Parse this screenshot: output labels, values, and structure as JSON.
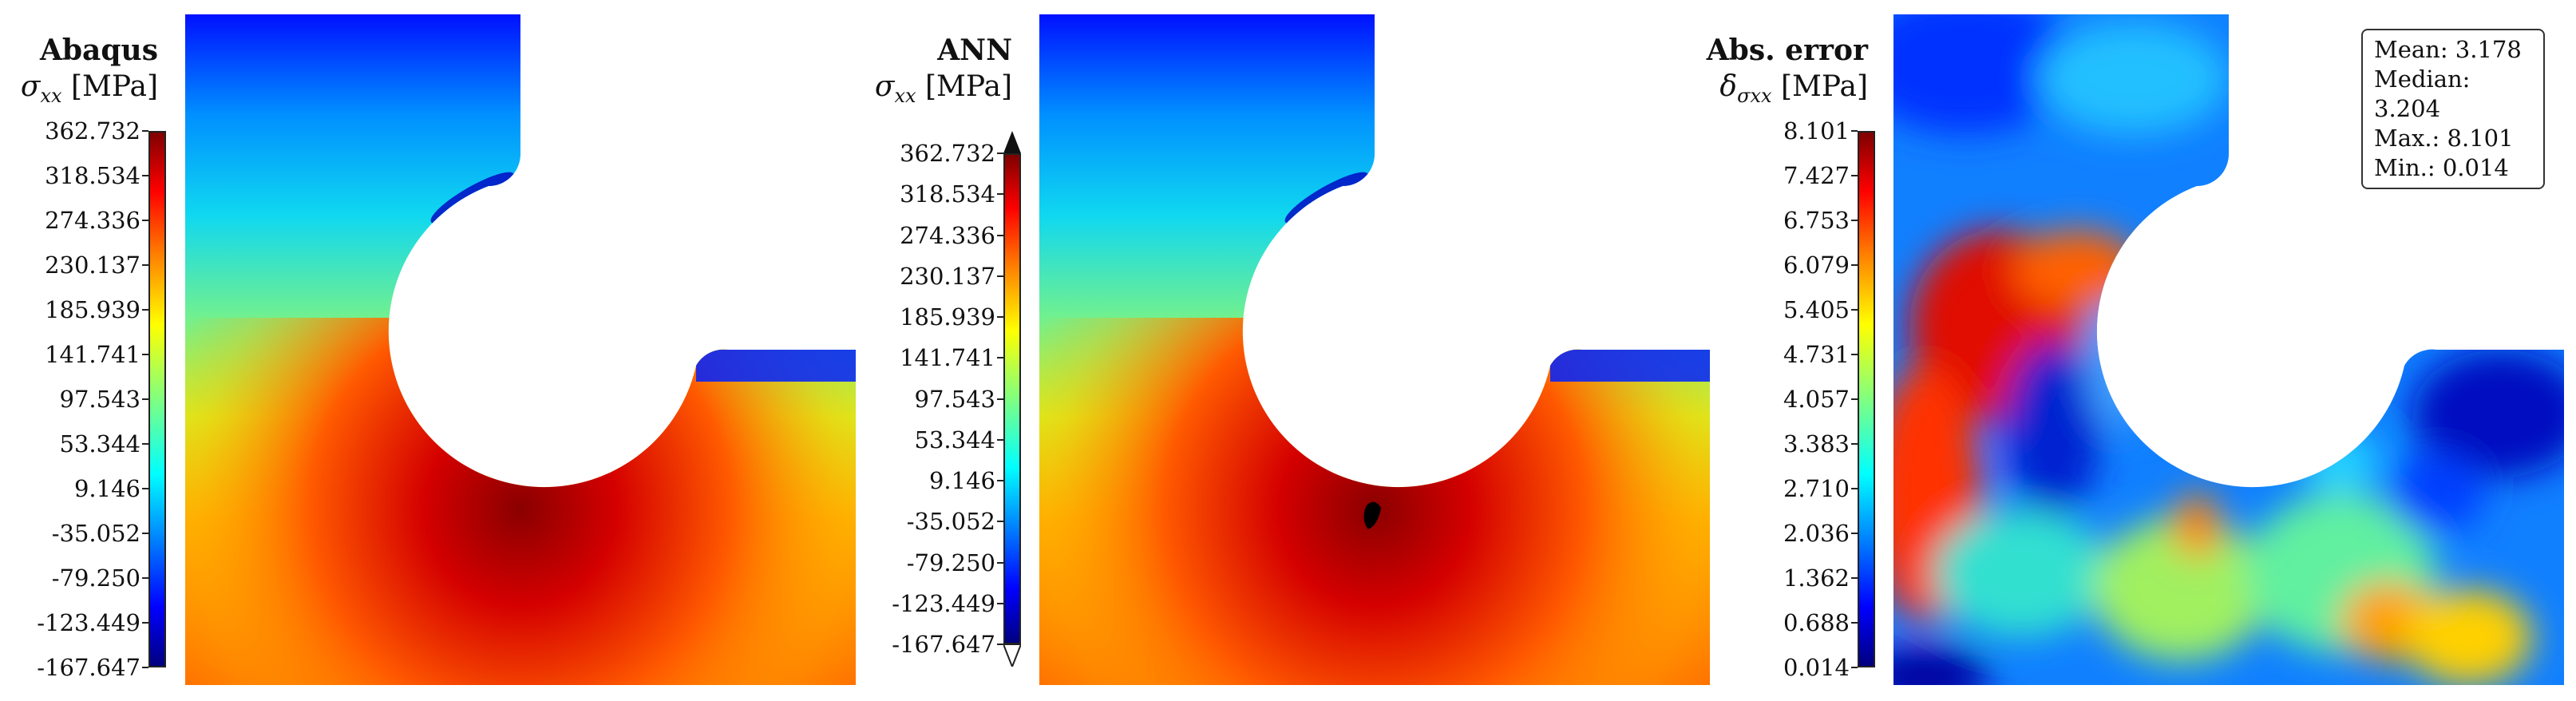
{
  "panels": [
    {
      "title": "Abaqus",
      "symbol": "σ",
      "subscript": "xx",
      "unit": "[MPa]",
      "colorbar_ticks": [
        "362.732",
        "318.534",
        "274.336",
        "230.137",
        "185.939",
        "141.741",
        "97.543",
        "53.344",
        "9.146",
        "-35.052",
        "-79.250",
        "-123.449",
        "-167.647"
      ]
    },
    {
      "title": "ANN",
      "symbol": "σ",
      "subscript": "xx",
      "unit": "[MPa]",
      "colorbar_ticks": [
        "362.732",
        "318.534",
        "274.336",
        "230.137",
        "185.939",
        "141.741",
        "97.543",
        "53.344",
        "9.146",
        "-35.052",
        "-79.250",
        "-123.449",
        "-167.647"
      ]
    },
    {
      "title": "Abs. error",
      "symbol": "δ",
      "subscript": "σxx",
      "unit": "[MPa]",
      "colorbar_ticks": [
        "8.101",
        "7.427",
        "6.753",
        "6.079",
        "5.405",
        "4.731",
        "4.057",
        "3.383",
        "2.710",
        "2.036",
        "1.362",
        "0.688",
        "0.014"
      ]
    }
  ],
  "stats": {
    "mean": "Mean: 3.178",
    "median": "Median: 3.204",
    "max": "Max.: 8.101",
    "min": "Min.: 0.014"
  },
  "colors": {
    "colormap": [
      "#00007f",
      "#0000ff",
      "#00ffff",
      "#80ff80",
      "#ffff00",
      "#ff8000",
      "#ff0000",
      "#7f0000"
    ]
  }
}
